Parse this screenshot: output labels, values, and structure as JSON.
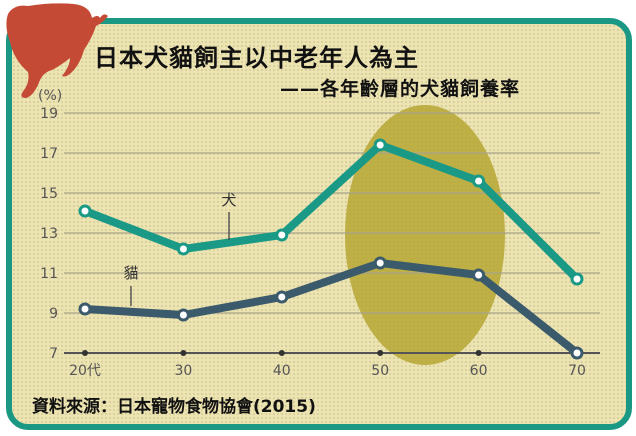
{
  "chart_data": {
    "type": "line",
    "title": "日本犬貓飼主以中老年人為主",
    "subtitle": "——各年齡層的犬貓飼養率",
    "ylabel": "(%)",
    "xlabel": "",
    "categories": [
      "20代",
      "30",
      "40",
      "50",
      "60",
      "70"
    ],
    "yticks": [
      "19",
      "17",
      "15",
      "13",
      "11",
      "9",
      "7"
    ],
    "ylim": [
      7,
      19
    ],
    "grid": true,
    "series": [
      {
        "name": "犬",
        "values": [
          14.1,
          12.2,
          12.9,
          17.4,
          15.6,
          10.7
        ],
        "color": "#1a9a86"
      },
      {
        "name": "貓",
        "values": [
          9.2,
          8.9,
          9.8,
          11.5,
          10.9,
          7.0
        ],
        "color": "#3b5a6b"
      }
    ],
    "highlight": {
      "categories": [
        "50",
        "60"
      ],
      "color": "#b5a733"
    },
    "source": "資料來源：日本寵物食物協會(2015)"
  },
  "colors": {
    "frame": "#1b9883",
    "background": "#ede4b4",
    "cat_silhouette": "#c44a35"
  }
}
